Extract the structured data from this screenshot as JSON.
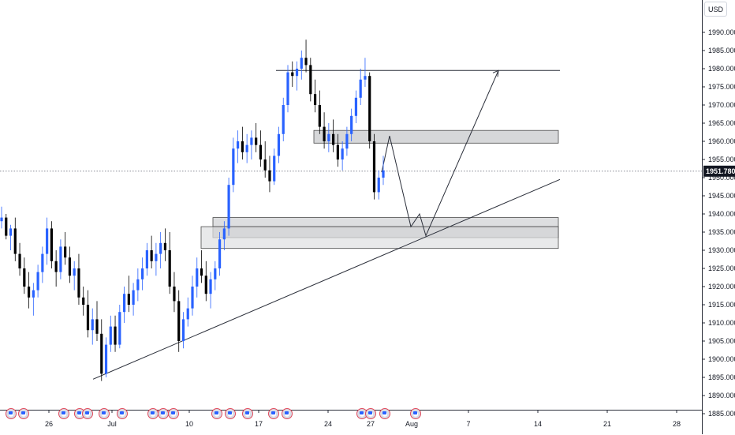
{
  "chart_data": {
    "type": "candlestick",
    "currency": "USD",
    "last_price": "1951.780",
    "y_ticks": [
      "1990.000",
      "1985.000",
      "1980.000",
      "1975.000",
      "1970.000",
      "1965.000",
      "1960.000",
      "1955.000",
      "1950.000",
      "1945.000",
      "1940.000",
      "1935.000",
      "1930.000",
      "1925.000",
      "1920.000",
      "1915.000",
      "1910.000",
      "1905.000",
      "1900.000",
      "1895.000",
      "1890.000",
      "1885.000"
    ],
    "x_ticks": [
      "26",
      "Jul",
      "10",
      "17",
      "24",
      "27",
      "Aug",
      "7",
      "14",
      "21",
      "28"
    ],
    "ylim": [
      1884.5,
      1995
    ],
    "zones": [
      {
        "name": "resistance-zone",
        "top": 1963,
        "bottom": 1959.5
      },
      {
        "name": "support-zone-upper",
        "top": 1939,
        "bottom": 1933.5
      },
      {
        "name": "support-zone-inner",
        "top": 1936.5,
        "bottom": 1933.5
      },
      {
        "name": "support-zone-lower",
        "top": 1936.5,
        "bottom": 1930.5
      }
    ],
    "resistance_line": 1979.5,
    "trendline": [
      1894.5,
      1949.5
    ],
    "projection_path": [
      1951.5,
      1961.5,
      1936.5,
      1940,
      1934,
      1979.5
    ],
    "candles_ohlc": [
      [
        1938,
        1942,
        1936,
        1939
      ],
      [
        1939,
        1940,
        1933,
        1934
      ],
      [
        1934,
        1937,
        1930,
        1936
      ],
      [
        1936,
        1939,
        1927,
        1929
      ],
      [
        1929,
        1932,
        1923,
        1925
      ],
      [
        1925,
        1928,
        1918,
        1920
      ],
      [
        1920,
        1924,
        1914,
        1917
      ],
      [
        1917,
        1921,
        1912,
        1919
      ],
      [
        1919,
        1926,
        1917,
        1924
      ],
      [
        1924,
        1931,
        1921,
        1929
      ],
      [
        1929,
        1939,
        1926,
        1936
      ],
      [
        1936,
        1938,
        1925,
        1927
      ],
      [
        1927,
        1930,
        1920,
        1924
      ],
      [
        1924,
        1933,
        1922,
        1931
      ],
      [
        1931,
        1935,
        1926,
        1928
      ],
      [
        1928,
        1931,
        1921,
        1923
      ],
      [
        1923,
        1927,
        1919,
        1925
      ],
      [
        1925,
        1929,
        1915,
        1917
      ],
      [
        1917,
        1920,
        1912,
        1915
      ],
      [
        1915,
        1919,
        1906,
        1908
      ],
      [
        1908,
        1914,
        1904,
        1911
      ],
      [
        1911,
        1916,
        1905,
        1907
      ],
      [
        1907,
        1911,
        1894,
        1896
      ],
      [
        1896,
        1906,
        1895,
        1904
      ],
      [
        1904,
        1912,
        1902,
        1909
      ],
      [
        1909,
        1912,
        1902,
        1904
      ],
      [
        1904,
        1915,
        1903,
        1913
      ],
      [
        1913,
        1920,
        1910,
        1918
      ],
      [
        1918,
        1923,
        1913,
        1915
      ],
      [
        1915,
        1921,
        1912,
        1919
      ],
      [
        1919,
        1925,
        1916,
        1922
      ],
      [
        1922,
        1928,
        1919,
        1925
      ],
      [
        1925,
        1932,
        1923,
        1930
      ],
      [
        1930,
        1934,
        1925,
        1927
      ],
      [
        1927,
        1932,
        1923,
        1929
      ],
      [
        1929,
        1935,
        1925,
        1932
      ],
      [
        1932,
        1936,
        1927,
        1930
      ],
      [
        1930,
        1935,
        1918,
        1920
      ],
      [
        1920,
        1924,
        1913,
        1916
      ],
      [
        1916,
        1919,
        1902,
        1905
      ],
      [
        1905,
        1913,
        1903,
        1911
      ],
      [
        1911,
        1917,
        1909,
        1914
      ],
      [
        1914,
        1923,
        1912,
        1920
      ],
      [
        1920,
        1928,
        1917,
        1925
      ],
      [
        1925,
        1930,
        1921,
        1923
      ],
      [
        1923,
        1927,
        1916,
        1918
      ],
      [
        1918,
        1924,
        1914,
        1922
      ],
      [
        1922,
        1927,
        1919,
        1925
      ],
      [
        1925,
        1935,
        1923,
        1933
      ],
      [
        1933,
        1938,
        1930,
        1936
      ],
      [
        1936,
        1950,
        1934,
        1948
      ],
      [
        1948,
        1961,
        1946,
        1958
      ],
      [
        1958,
        1963,
        1954,
        1960
      ],
      [
        1960,
        1964,
        1955,
        1957
      ],
      [
        1957,
        1962,
        1954,
        1959
      ],
      [
        1959,
        1963,
        1955,
        1961
      ],
      [
        1961,
        1965,
        1957,
        1959
      ],
      [
        1959,
        1963,
        1953,
        1955
      ],
      [
        1955,
        1960,
        1950,
        1952
      ],
      [
        1952,
        1956,
        1946,
        1949
      ],
      [
        1949,
        1958,
        1948,
        1956
      ],
      [
        1956,
        1964,
        1954,
        1962
      ],
      [
        1962,
        1972,
        1960,
        1970
      ],
      [
        1970,
        1981,
        1968,
        1979
      ],
      [
        1979,
        1982,
        1975,
        1978
      ],
      [
        1978,
        1982,
        1974,
        1980
      ],
      [
        1980,
        1985,
        1977,
        1983
      ],
      [
        1983,
        1988,
        1979,
        1981
      ],
      [
        1981,
        1983,
        1971,
        1973
      ],
      [
        1973,
        1977,
        1968,
        1970
      ],
      [
        1970,
        1974,
        1962,
        1964
      ],
      [
        1964,
        1968,
        1958,
        1960
      ],
      [
        1960,
        1965,
        1957,
        1962
      ],
      [
        1962,
        1966,
        1957,
        1959
      ],
      [
        1959,
        1962,
        1953,
        1955
      ],
      [
        1955,
        1960,
        1952,
        1958
      ],
      [
        1958,
        1964,
        1956,
        1962
      ],
      [
        1962,
        1969,
        1960,
        1967
      ],
      [
        1967,
        1974,
        1965,
        1972
      ],
      [
        1972,
        1980,
        1970,
        1977
      ],
      [
        1977,
        1983,
        1975,
        1978
      ],
      [
        1978,
        1979,
        1958,
        1960
      ],
      [
        1960,
        1962,
        1944,
        1946
      ],
      [
        1946,
        1952,
        1944,
        1950
      ],
      [
        1950,
        1956,
        1948,
        1952
      ]
    ]
  }
}
